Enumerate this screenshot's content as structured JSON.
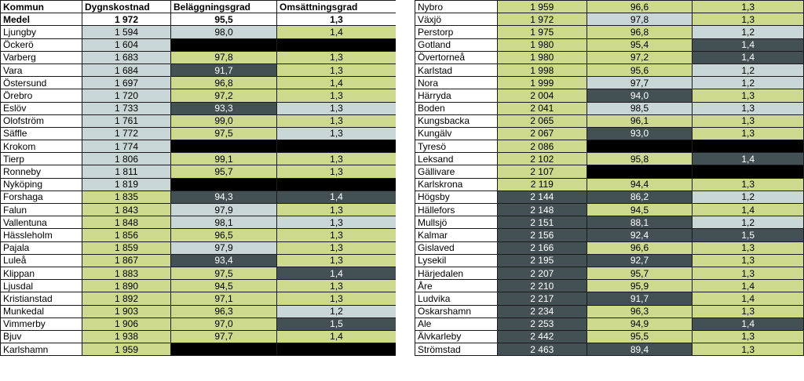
{
  "headers": [
    "Kommun",
    "Dygnskostnad",
    "Beläggningsgrad",
    "Omsättningsgrad"
  ],
  "medel": {
    "kommun": "Medel",
    "dygnskostnad": "1 972",
    "belaggningsgrad": "95,5",
    "omsattningsgrad": "1,3"
  },
  "left_rows": [
    {
      "kommun": "Ljungby",
      "dygnskostnad": "1 594",
      "belaggningsgrad": "98,0",
      "omsattningsgrad": "1,4",
      "colors": [
        "light",
        "light",
        "green"
      ]
    },
    {
      "kommun": "Öckerö",
      "dygnskostnad": "1 604",
      "belaggningsgrad": "",
      "omsattningsgrad": "",
      "colors": [
        "light",
        "black",
        "black"
      ]
    },
    {
      "kommun": "Varberg",
      "dygnskostnad": "1 683",
      "belaggningsgrad": "97,8",
      "omsattningsgrad": "1,3",
      "colors": [
        "light",
        "green",
        "green"
      ]
    },
    {
      "kommun": "Vara",
      "dygnskostnad": "1 684",
      "belaggningsgrad": "91,7",
      "omsattningsgrad": "1,3",
      "colors": [
        "light",
        "dark",
        "green"
      ]
    },
    {
      "kommun": "Östersund",
      "dygnskostnad": "1 697",
      "belaggningsgrad": "96,8",
      "omsattningsgrad": "1,4",
      "colors": [
        "light",
        "green",
        "green"
      ]
    },
    {
      "kommun": "Örebro",
      "dygnskostnad": "1 720",
      "belaggningsgrad": "97,2",
      "omsattningsgrad": "1,3",
      "colors": [
        "light",
        "green",
        "green"
      ]
    },
    {
      "kommun": "Eslöv",
      "dygnskostnad": "1 733",
      "belaggningsgrad": "93,3",
      "omsattningsgrad": "1,3",
      "colors": [
        "light",
        "dark",
        "light"
      ]
    },
    {
      "kommun": "Olofström",
      "dygnskostnad": "1 761",
      "belaggningsgrad": "99,0",
      "omsattningsgrad": "1,3",
      "colors": [
        "light",
        "green",
        "green"
      ]
    },
    {
      "kommun": "Säffle",
      "dygnskostnad": "1 772",
      "belaggningsgrad": "97,5",
      "omsattningsgrad": "1,3",
      "colors": [
        "light",
        "green",
        "light"
      ]
    },
    {
      "kommun": "Krokom",
      "dygnskostnad": "1 774",
      "belaggningsgrad": "",
      "omsattningsgrad": "",
      "colors": [
        "light",
        "black",
        "black"
      ]
    },
    {
      "kommun": "Tierp",
      "dygnskostnad": "1 806",
      "belaggningsgrad": "99,1",
      "omsattningsgrad": "1,3",
      "colors": [
        "light",
        "green",
        "green"
      ]
    },
    {
      "kommun": "Ronneby",
      "dygnskostnad": "1 811",
      "belaggningsgrad": "95,7",
      "omsattningsgrad": "1,3",
      "colors": [
        "light",
        "green",
        "green"
      ]
    },
    {
      "kommun": "Nyköping",
      "dygnskostnad": "1 819",
      "belaggningsgrad": "",
      "omsattningsgrad": "",
      "colors": [
        "light",
        "black",
        "black"
      ]
    },
    {
      "kommun": "Forshaga",
      "dygnskostnad": "1 835",
      "belaggningsgrad": "94,3",
      "omsattningsgrad": "1,4",
      "colors": [
        "green",
        "dark",
        "dark"
      ]
    },
    {
      "kommun": "Falun",
      "dygnskostnad": "1 843",
      "belaggningsgrad": "97,9",
      "omsattningsgrad": "1,3",
      "colors": [
        "green",
        "light",
        "green"
      ]
    },
    {
      "kommun": "Vallentuna",
      "dygnskostnad": "1 848",
      "belaggningsgrad": "98,1",
      "omsattningsgrad": "1,3",
      "colors": [
        "green",
        "light",
        "light"
      ]
    },
    {
      "kommun": "Hässleholm",
      "dygnskostnad": "1 856",
      "belaggningsgrad": "96,5",
      "omsattningsgrad": "1,3",
      "colors": [
        "green",
        "green",
        "green"
      ]
    },
    {
      "kommun": "Pajala",
      "dygnskostnad": "1 859",
      "belaggningsgrad": "97,9",
      "omsattningsgrad": "1,3",
      "colors": [
        "green",
        "light",
        "green"
      ]
    },
    {
      "kommun": "Luleå",
      "dygnskostnad": "1 867",
      "belaggningsgrad": "93,4",
      "omsattningsgrad": "1,3",
      "colors": [
        "green",
        "dark",
        "green"
      ]
    },
    {
      "kommun": "Klippan",
      "dygnskostnad": "1 883",
      "belaggningsgrad": "97,5",
      "omsattningsgrad": "1,4",
      "colors": [
        "green",
        "green",
        "dark"
      ]
    },
    {
      "kommun": "Ljusdal",
      "dygnskostnad": "1 890",
      "belaggningsgrad": "94,5",
      "omsattningsgrad": "1,3",
      "colors": [
        "green",
        "green",
        "green"
      ]
    },
    {
      "kommun": "Kristianstad",
      "dygnskostnad": "1 892",
      "belaggningsgrad": "97,1",
      "omsattningsgrad": "1,3",
      "colors": [
        "green",
        "green",
        "green"
      ]
    },
    {
      "kommun": "Munkedal",
      "dygnskostnad": "1 903",
      "belaggningsgrad": "96,3",
      "omsattningsgrad": "1,2",
      "colors": [
        "green",
        "green",
        "light"
      ]
    },
    {
      "kommun": "Vimmerby",
      "dygnskostnad": "1 906",
      "belaggningsgrad": "97,0",
      "omsattningsgrad": "1,5",
      "colors": [
        "green",
        "green",
        "dark"
      ]
    },
    {
      "kommun": "Bjuv",
      "dygnskostnad": "1 938",
      "belaggningsgrad": "97,7",
      "omsattningsgrad": "1,4",
      "colors": [
        "green",
        "green",
        "green"
      ]
    },
    {
      "kommun": "Karlshamn",
      "dygnskostnad": "1 959",
      "belaggningsgrad": "",
      "omsattningsgrad": "",
      "colors": [
        "green",
        "black",
        "black"
      ]
    }
  ],
  "right_rows": [
    {
      "kommun": "Nybro",
      "dygnskostnad": "1 959",
      "belaggningsgrad": "96,6",
      "omsattningsgrad": "1,3",
      "colors": [
        "green",
        "green",
        "green"
      ]
    },
    {
      "kommun": "Växjö",
      "dygnskostnad": "1 972",
      "belaggningsgrad": "97,8",
      "omsattningsgrad": "1,3",
      "colors": [
        "green",
        "light",
        "green"
      ]
    },
    {
      "kommun": "Perstorp",
      "dygnskostnad": "1 975",
      "belaggningsgrad": "96,8",
      "omsattningsgrad": "1,2",
      "colors": [
        "green",
        "green",
        "light"
      ]
    },
    {
      "kommun": "Gotland",
      "dygnskostnad": "1 980",
      "belaggningsgrad": "95,4",
      "omsattningsgrad": "1,4",
      "colors": [
        "green",
        "green",
        "dark"
      ]
    },
    {
      "kommun": "Övertorneå",
      "dygnskostnad": "1 980",
      "belaggningsgrad": "97,2",
      "omsattningsgrad": "1,4",
      "colors": [
        "green",
        "green",
        "dark"
      ]
    },
    {
      "kommun": "Karlstad",
      "dygnskostnad": "1 998",
      "belaggningsgrad": "95,6",
      "omsattningsgrad": "1,2",
      "colors": [
        "green",
        "green",
        "light"
      ]
    },
    {
      "kommun": "Nora",
      "dygnskostnad": "1 999",
      "belaggningsgrad": "97,7",
      "omsattningsgrad": "1,2",
      "colors": [
        "green",
        "light",
        "light"
      ]
    },
    {
      "kommun": "Härryda",
      "dygnskostnad": "2 004",
      "belaggningsgrad": "94,0",
      "omsattningsgrad": "1,3",
      "colors": [
        "green",
        "dark",
        "green"
      ]
    },
    {
      "kommun": "Boden",
      "dygnskostnad": "2 041",
      "belaggningsgrad": "98,5",
      "omsattningsgrad": "1,3",
      "colors": [
        "green",
        "light",
        "light"
      ]
    },
    {
      "kommun": "Kungsbacka",
      "dygnskostnad": "2 065",
      "belaggningsgrad": "96,1",
      "omsattningsgrad": "1,3",
      "colors": [
        "green",
        "green",
        "green"
      ]
    },
    {
      "kommun": "Kungälv",
      "dygnskostnad": "2 067",
      "belaggningsgrad": "93,0",
      "omsattningsgrad": "1,3",
      "colors": [
        "green",
        "dark",
        "green"
      ]
    },
    {
      "kommun": "Tyresö",
      "dygnskostnad": "2 086",
      "belaggningsgrad": "",
      "omsattningsgrad": "",
      "colors": [
        "green",
        "black",
        "black"
      ]
    },
    {
      "kommun": "Leksand",
      "dygnskostnad": "2 102",
      "belaggningsgrad": "95,8",
      "omsattningsgrad": "1,4",
      "colors": [
        "green",
        "green",
        "dark"
      ]
    },
    {
      "kommun": "Gällivare",
      "dygnskostnad": "2 107",
      "belaggningsgrad": "",
      "omsattningsgrad": "",
      "colors": [
        "green",
        "black",
        "black"
      ]
    },
    {
      "kommun": "Karlskrona",
      "dygnskostnad": "2 119",
      "belaggningsgrad": "94,4",
      "omsattningsgrad": "1,3",
      "colors": [
        "green",
        "green",
        "green"
      ]
    },
    {
      "kommun": "Högsby",
      "dygnskostnad": "2 144",
      "belaggningsgrad": "86,2",
      "omsattningsgrad": "1,2",
      "colors": [
        "dark",
        "dark",
        "light"
      ]
    },
    {
      "kommun": "Hällefors",
      "dygnskostnad": "2 148",
      "belaggningsgrad": "94,5",
      "omsattningsgrad": "1,4",
      "colors": [
        "dark",
        "green",
        "green"
      ]
    },
    {
      "kommun": "Mullsjö",
      "dygnskostnad": "2 151",
      "belaggningsgrad": "88,1",
      "omsattningsgrad": "1,2",
      "colors": [
        "dark",
        "dark",
        "light"
      ]
    },
    {
      "kommun": "Kalmar",
      "dygnskostnad": "2 156",
      "belaggningsgrad": "92,4",
      "omsattningsgrad": "1,5",
      "colors": [
        "dark",
        "dark",
        "dark"
      ]
    },
    {
      "kommun": "Gislaved",
      "dygnskostnad": "2 166",
      "belaggningsgrad": "96,6",
      "omsattningsgrad": "1,3",
      "colors": [
        "dark",
        "green",
        "green"
      ]
    },
    {
      "kommun": "Lysekil",
      "dygnskostnad": "2 195",
      "belaggningsgrad": "92,7",
      "omsattningsgrad": "1,3",
      "colors": [
        "dark",
        "dark",
        "green"
      ]
    },
    {
      "kommun": "Härjedalen",
      "dygnskostnad": "2 207",
      "belaggningsgrad": "95,7",
      "omsattningsgrad": "1,3",
      "colors": [
        "dark",
        "green",
        "green"
      ]
    },
    {
      "kommun": "Åre",
      "dygnskostnad": "2 210",
      "belaggningsgrad": "95,9",
      "omsattningsgrad": "1,4",
      "colors": [
        "dark",
        "green",
        "green"
      ]
    },
    {
      "kommun": "Ludvika",
      "dygnskostnad": "2 217",
      "belaggningsgrad": "91,7",
      "omsattningsgrad": "1,4",
      "colors": [
        "dark",
        "dark",
        "green"
      ]
    },
    {
      "kommun": "Oskarshamn",
      "dygnskostnad": "2 234",
      "belaggningsgrad": "96,3",
      "omsattningsgrad": "1,3",
      "colors": [
        "dark",
        "green",
        "green"
      ]
    },
    {
      "kommun": "Ale",
      "dygnskostnad": "2 253",
      "belaggningsgrad": "94,9",
      "omsattningsgrad": "1,4",
      "colors": [
        "dark",
        "green",
        "dark"
      ]
    },
    {
      "kommun": "Älvkarleby",
      "dygnskostnad": "2 442",
      "belaggningsgrad": "95,5",
      "omsattningsgrad": "1,3",
      "colors": [
        "dark",
        "green",
        "green"
      ]
    },
    {
      "kommun": "Strömstad",
      "dygnskostnad": "2 463",
      "belaggningsgrad": "89,4",
      "omsattningsgrad": "1,3",
      "colors": [
        "dark",
        "dark",
        "green"
      ]
    }
  ],
  "colors": {
    "light": "#c9d6d8",
    "green": "#cdd98c",
    "dark": "#435155",
    "black": "#000000"
  }
}
